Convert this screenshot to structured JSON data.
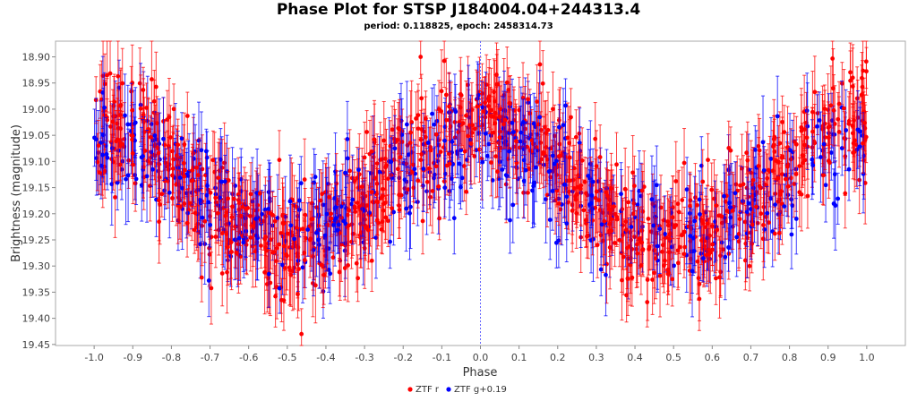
{
  "chart_data": {
    "type": "scatter",
    "title": "Phase Plot for STSP J184004.04+244313.4",
    "subtitle": "period: 0.118825, epoch: 2458314.73",
    "xlabel": "Phase",
    "ylabel": "Brightness (magnitude)",
    "xlim": [
      -1.1,
      1.1
    ],
    "ylim": [
      19.452,
      18.87
    ],
    "y_inverted": true,
    "x_ticks": [
      "-1.0",
      "-0.9",
      "-0.8",
      "-0.7",
      "-0.6",
      "-0.5",
      "-0.4",
      "-0.3",
      "-0.2",
      "-0.1",
      "0.0",
      "0.1",
      "0.2",
      "0.3",
      "0.4",
      "0.5",
      "0.6",
      "0.7",
      "0.8",
      "0.9",
      "1.0"
    ],
    "y_ticks": [
      "18.90",
      "18.95",
      "19.00",
      "19.05",
      "19.10",
      "19.15",
      "19.20",
      "19.25",
      "19.30",
      "19.35",
      "19.40",
      "19.45"
    ],
    "reference_line_x": 0.0,
    "error_bars": true,
    "grid": false,
    "legend_position": "bottom-center",
    "series": [
      {
        "name": "ZTF r",
        "color": "#ff0000",
        "n_points": 1050,
        "model": {
          "phase_range": [
            -1.0,
            1.0
          ],
          "mean_mag": 19.14,
          "max_brightness_mag": 19.02,
          "min_brightness_mag": 19.26,
          "max_at_phase": [
            -1.0,
            0.0,
            1.0
          ],
          "min_at_phase": [
            -0.5,
            0.5
          ],
          "scatter_mag": 0.055,
          "error_bar_mag": [
            0.04,
            0.08
          ]
        }
      },
      {
        "name": "ZTF g+0.19",
        "color": "#0000ff",
        "n_points": 520,
        "model": {
          "phase_range": [
            -1.0,
            1.0
          ],
          "mean_mag": 19.15,
          "max_brightness_mag": 19.06,
          "min_brightness_mag": 19.24,
          "max_at_phase": [
            -1.0,
            0.0,
            1.0
          ],
          "min_at_phase": [
            -0.5,
            0.5
          ],
          "scatter_mag": 0.055,
          "error_bar_mag": [
            0.04,
            0.09
          ]
        }
      }
    ]
  }
}
